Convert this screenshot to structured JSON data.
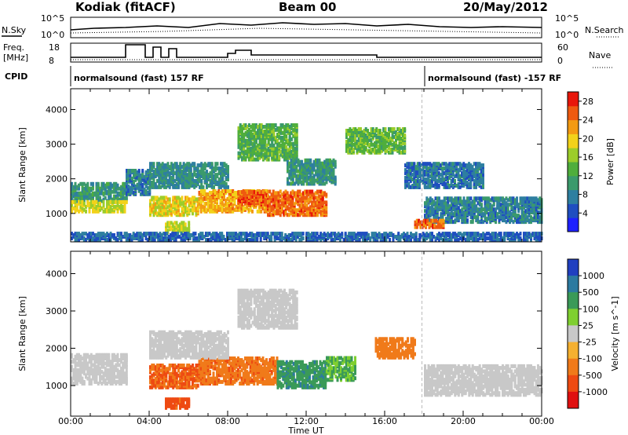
{
  "header": {
    "station": "Kodiak (fitACF)",
    "beam": "Beam 00",
    "date": "20/May/2012"
  },
  "top_panels": {
    "nsky_label": "N.Sky",
    "nsearch_label": "N.Search",
    "nsky_ticks": [
      "10^5",
      "10^0"
    ],
    "nsearch_ticks": [
      "10^5",
      "10^0"
    ],
    "freq_label_1": "Freq.",
    "freq_label_2": "[MHz]",
    "freq_ticks": [
      "18",
      "8"
    ],
    "nave_label": "Nave",
    "nave_ticks": [
      "60",
      "0"
    ],
    "cpid_label": "CPID",
    "cpid_segments": [
      "normalsound (fast) 157 RF",
      "normalsound (fast) -157 RF"
    ]
  },
  "chart_data": [
    {
      "type": "heatmap",
      "title": "",
      "xlabel": "Time UT",
      "ylabel": "Slant Range [km]",
      "xlim": [
        0,
        24
      ],
      "ylim": [
        180,
        4600
      ],
      "x_ticks": [
        "00:00",
        "04:00",
        "08:00",
        "12:00",
        "16:00",
        "20:00",
        "00:00"
      ],
      "y_ticks": [
        "1000",
        "2000",
        "3000",
        "4000"
      ],
      "colorbar": {
        "label": "Power [dB]",
        "ticks": [
          "4",
          "8",
          "12",
          "16",
          "20",
          "24",
          "28"
        ],
        "range": [
          0,
          30
        ],
        "colors": [
          "#1e20ff",
          "#1f4ec0",
          "#2e7fa0",
          "#3b9a6c",
          "#4fae3c",
          "#9ccd2a",
          "#f2d21a",
          "#f39a12",
          "#ee5a10",
          "#e8160a"
        ]
      },
      "regions": [
        {
          "t": [
            0.0,
            2.8
          ],
          "r": [
            1300,
            1800
          ],
          "v": 10
        },
        {
          "t": [
            0.0,
            2.8
          ],
          "r": [
            1000,
            1300
          ],
          "v": 18
        },
        {
          "t": [
            2.8,
            4.0
          ],
          "r": [
            1500,
            2200
          ],
          "v": 8
        },
        {
          "t": [
            4.0,
            6.5
          ],
          "r": [
            900,
            1400
          ],
          "v": 19
        },
        {
          "t": [
            4.8,
            6.0
          ],
          "r": [
            400,
            700
          ],
          "v": 18
        },
        {
          "t": [
            6.5,
            10.0
          ],
          "r": [
            1000,
            1600
          ],
          "v": 22
        },
        {
          "t": [
            8.5,
            10.0
          ],
          "r": [
            1200,
            1600
          ],
          "v": 26
        },
        {
          "t": [
            10.0,
            13.0
          ],
          "r": [
            900,
            1600
          ],
          "v": 25
        },
        {
          "t": [
            4.0,
            8.0
          ],
          "r": [
            1700,
            2400
          ],
          "v": 9
        },
        {
          "t": [
            8.5,
            11.5
          ],
          "r": [
            2500,
            3500
          ],
          "v": 13
        },
        {
          "t": [
            11.0,
            13.5
          ],
          "r": [
            1800,
            2500
          ],
          "v": 10
        },
        {
          "t": [
            14.0,
            17.0
          ],
          "r": [
            2700,
            3400
          ],
          "v": 14
        },
        {
          "t": [
            17.0,
            21.0
          ],
          "r": [
            1700,
            2400
          ],
          "v": 7
        },
        {
          "t": [
            18.0,
            24.0
          ],
          "r": [
            700,
            1400
          ],
          "v": 8
        },
        {
          "t": [
            17.5,
            19.0
          ],
          "r": [
            550,
            750
          ],
          "v": 25
        },
        {
          "t": [
            0.0,
            24.0
          ],
          "r": [
            180,
            400
          ],
          "v": 6
        }
      ]
    },
    {
      "type": "heatmap",
      "title": "",
      "xlabel": "Time UT",
      "ylabel": "Slant Range [km]",
      "xlim": [
        0,
        24
      ],
      "ylim": [
        180,
        4600
      ],
      "x_ticks": [
        "00:00",
        "04:00",
        "08:00",
        "12:00",
        "16:00",
        "20:00",
        "00:00"
      ],
      "y_ticks": [
        "1000",
        "2000",
        "3000",
        "4000"
      ],
      "colorbar": {
        "label": "Velocity [m s^-1]",
        "ticks": [
          "1000",
          "500",
          "100",
          "25",
          "-25",
          "-100",
          "-500",
          "-1000"
        ],
        "colors": [
          "#2040c0",
          "#2c7aa0",
          "#3a9a58",
          "#7fcf30",
          "#c8c8c8",
          "#f5b030",
          "#f07a1a",
          "#ee4a12",
          "#e01010"
        ]
      },
      "regions": [
        {
          "t": [
            0.0,
            2.8
          ],
          "r": [
            1000,
            1800
          ],
          "v": 0
        },
        {
          "t": [
            4.0,
            6.5
          ],
          "r": [
            900,
            1500
          ],
          "v": -300
        },
        {
          "t": [
            4.8,
            6.0
          ],
          "r": [
            350,
            600
          ],
          "v": -400
        },
        {
          "t": [
            6.5,
            10.5
          ],
          "r": [
            1000,
            1700
          ],
          "v": -250
        },
        {
          "t": [
            10.5,
            13.0
          ],
          "r": [
            900,
            1600
          ],
          "v": 250
        },
        {
          "t": [
            4.0,
            8.0
          ],
          "r": [
            1700,
            2400
          ],
          "v": 0
        },
        {
          "t": [
            8.5,
            11.5
          ],
          "r": [
            2500,
            3500
          ],
          "v": 0
        },
        {
          "t": [
            13.0,
            14.5
          ],
          "r": [
            1100,
            1700
          ],
          "v": 60
        },
        {
          "t": [
            15.5,
            17.5
          ],
          "r": [
            1700,
            2200
          ],
          "v": -200
        },
        {
          "t": [
            18.0,
            24.0
          ],
          "r": [
            700,
            1500
          ],
          "v": 0
        }
      ]
    }
  ],
  "divider_time": 17.9
}
